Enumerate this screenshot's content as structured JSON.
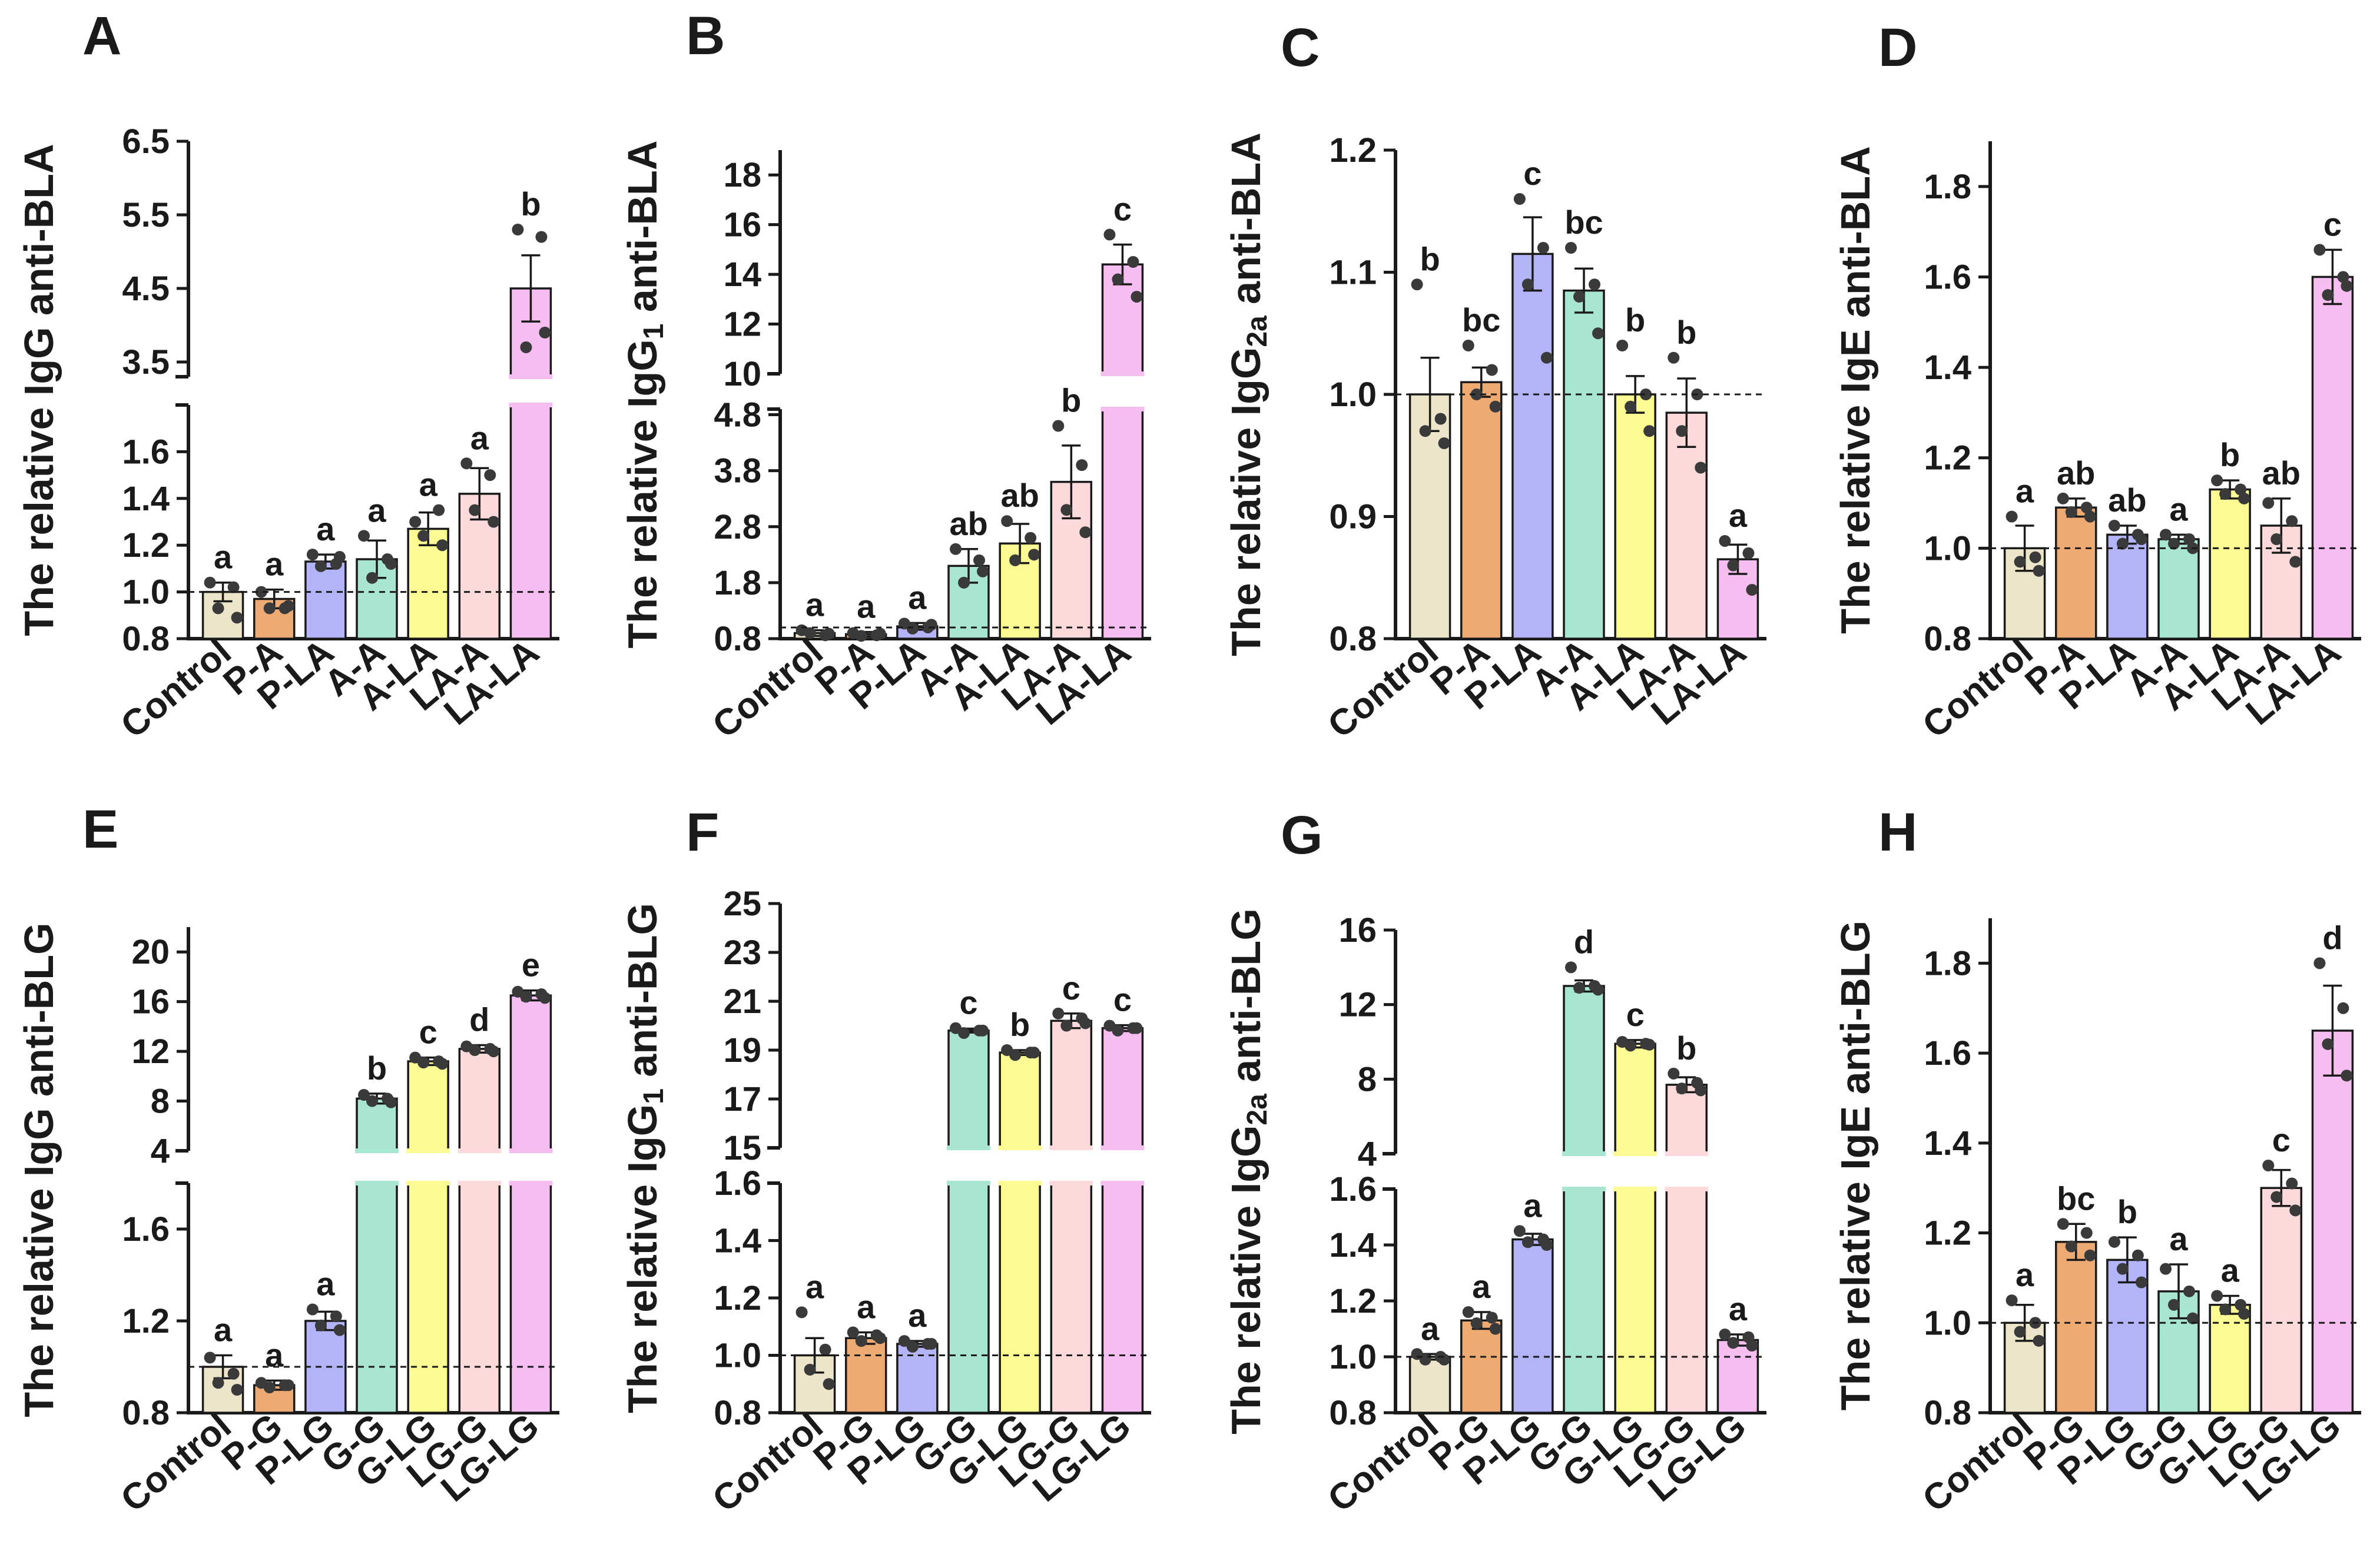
{
  "colors": {
    "Control": "#ece5c9",
    "P": "#eeaa73",
    "P-L": "#b3b3f7",
    "Treat": "#a9e6d1",
    "Treat-L": "#fbfa93",
    "L-Treat": "#fcd9da",
    "L-L": "#f6bdf1"
  },
  "chart_data": [
    {
      "panel": "A",
      "type": "bar",
      "ylabel": "The relative IgG anti-BLA",
      "categories": [
        "Control",
        "P-A",
        "P-LA",
        "A-A",
        "A-LA",
        "LA-A",
        "LA-LA"
      ],
      "values": [
        1.0,
        0.97,
        1.13,
        1.14,
        1.27,
        1.42,
        4.5
      ],
      "errors": [
        0.04,
        0.04,
        0.03,
        0.08,
        0.07,
        0.11,
        0.45
      ],
      "sig": [
        "a",
        "a",
        "a",
        "a",
        "a",
        "a",
        "b"
      ],
      "points": [
        [
          1.04,
          1.02,
          0.93,
          0.89
        ],
        [
          1.0,
          0.93,
          0.93,
          0.94
        ],
        [
          1.16,
          1.12,
          1.11,
          1.15
        ],
        [
          1.24,
          1.14,
          1.06,
          1.12
        ],
        [
          1.3,
          1.35,
          1.24,
          1.2
        ],
        [
          1.55,
          1.5,
          1.35,
          1.3
        ],
        [
          5.3,
          5.2,
          3.7,
          3.9
        ]
      ],
      "reference_line": 1.0,
      "axis_break": true,
      "lower_range": [
        0.8,
        1.8
      ],
      "lower_ticks": [
        "0.8",
        "1.0",
        "1.2",
        "1.4",
        "1.6"
      ],
      "upper_range": [
        3.3,
        6.5
      ],
      "upper_ticks": [
        "3.5",
        "4.5",
        "5.5",
        "6.5"
      ]
    },
    {
      "panel": "B",
      "type": "bar",
      "ylabel_main": "The relative IgG",
      "ylabel_sub": "1",
      "ylabel_tail": " anti-BLA",
      "categories": [
        "Control",
        "P-A",
        "P-LA",
        "A-A",
        "A-LA",
        "LA-A",
        "LA-LA"
      ],
      "values": [
        0.9,
        0.88,
        1.02,
        2.1,
        2.5,
        3.6,
        14.4
      ],
      "errors": [
        0.05,
        0.04,
        0.06,
        0.3,
        0.35,
        0.65,
        0.8
      ],
      "sig": [
        "a",
        "a",
        "a",
        "ab",
        "ab",
        "b",
        "c"
      ],
      "points": [
        [
          0.95,
          0.86,
          0.9,
          0.89
        ],
        [
          0.9,
          0.86,
          0.85,
          0.89
        ],
        [
          1.07,
          1.0,
          0.98,
          1.05
        ],
        [
          2.4,
          2.2,
          1.8,
          2.0
        ],
        [
          2.9,
          2.6,
          2.2,
          2.3
        ],
        [
          4.6,
          3.9,
          3.1,
          2.7
        ],
        [
          15.6,
          14.5,
          13.8,
          13.1
        ]
      ],
      "reference_line": 1.0,
      "axis_break": true,
      "lower_range": [
        0.8,
        4.9
      ],
      "lower_ticks": [
        "0.8",
        "1.8",
        "2.8",
        "3.8",
        "4.8"
      ],
      "upper_range": [
        10,
        19
      ],
      "upper_ticks": [
        "10",
        "12",
        "14",
        "16",
        "18"
      ]
    },
    {
      "panel": "C",
      "type": "bar",
      "ylabel_main": "The relative IgG",
      "ylabel_sub": "2a",
      "ylabel_tail": " anti-BLA",
      "categories": [
        "Control",
        "P-A",
        "P-LA",
        "A-A",
        "A-LA",
        "LA-A",
        "LA-LA"
      ],
      "values": [
        1.0,
        1.01,
        1.115,
        1.085,
        1.0,
        0.985,
        0.865
      ],
      "errors": [
        0.03,
        0.012,
        0.03,
        0.018,
        0.015,
        0.028,
        0.012
      ],
      "sig": [
        "b",
        "bc",
        "c",
        "bc",
        "b",
        "b",
        "a"
      ],
      "points": [
        [
          1.09,
          0.98,
          0.97,
          0.96
        ],
        [
          1.04,
          1.02,
          1.0,
          0.99
        ],
        [
          1.16,
          1.12,
          1.09,
          1.03
        ],
        [
          1.12,
          1.09,
          1.08,
          1.05
        ],
        [
          1.04,
          1.0,
          0.99,
          0.97
        ],
        [
          1.03,
          1.0,
          0.97,
          0.94
        ],
        [
          0.88,
          0.87,
          0.86,
          0.84
        ]
      ],
      "reference_line": 1.0,
      "axis_break": false,
      "range": [
        0.8,
        1.2
      ],
      "ticks": [
        "0.8",
        "0.9",
        "1.0",
        "1.1",
        "1.2"
      ]
    },
    {
      "panel": "D",
      "type": "bar",
      "ylabel": "The relative IgE anti-BLA",
      "categories": [
        "Control",
        "P-A",
        "P-LA",
        "A-A",
        "A-LA",
        "LA-A",
        "LA-LA"
      ],
      "values": [
        1.0,
        1.09,
        1.03,
        1.02,
        1.13,
        1.05,
        1.6
      ],
      "errors": [
        0.05,
        0.02,
        0.02,
        0.01,
        0.02,
        0.06,
        0.06
      ],
      "sig": [
        "a",
        "ab",
        "ab",
        "a",
        "b",
        "ab",
        "c"
      ],
      "points": [
        [
          1.07,
          0.98,
          0.97,
          0.95
        ],
        [
          1.11,
          1.09,
          1.08,
          1.07
        ],
        [
          1.05,
          1.03,
          1.01,
          1.02
        ],
        [
          1.03,
          1.02,
          1.01,
          1.0
        ],
        [
          1.15,
          1.13,
          1.12,
          1.11
        ],
        [
          1.1,
          1.06,
          1.02,
          0.97
        ],
        [
          1.66,
          1.6,
          1.56,
          1.58
        ]
      ],
      "reference_line": 1.0,
      "axis_break": false,
      "range": [
        0.8,
        1.9
      ],
      "ticks": [
        "0.8",
        "1.0",
        "1.2",
        "1.4",
        "1.6",
        "1.8"
      ]
    },
    {
      "panel": "E",
      "type": "bar",
      "ylabel": "The relative IgG anti-BLG",
      "categories": [
        "Control",
        "P-G",
        "P-LG",
        "G-G",
        "G-LG",
        "LG-G",
        "LG-LG"
      ],
      "values": [
        1.0,
        0.92,
        1.2,
        8.2,
        11.2,
        12.2,
        16.5
      ],
      "errors": [
        0.05,
        0.02,
        0.04,
        0.4,
        0.3,
        0.3,
        0.4
      ],
      "sig": [
        "a",
        "a",
        "a",
        "b",
        "c",
        "d",
        "e"
      ],
      "points": [
        [
          1.04,
          0.97,
          0.93,
          0.9
        ],
        [
          0.93,
          0.92,
          0.91,
          0.92
        ],
        [
          1.25,
          1.22,
          1.18,
          1.16
        ],
        [
          8.5,
          8.2,
          8.0,
          7.9
        ],
        [
          11.5,
          11.2,
          11.1,
          11.0
        ],
        [
          12.4,
          12.2,
          12.1,
          12.0
        ],
        [
          16.8,
          16.6,
          16.4,
          16.3
        ]
      ],
      "reference_line": 1.0,
      "axis_break": true,
      "lower_range": [
        0.8,
        1.8
      ],
      "lower_ticks": [
        "0.8",
        "1.2",
        "1.6"
      ],
      "upper_range": [
        4,
        22
      ],
      "upper_ticks": [
        "4",
        "8",
        "12",
        "16",
        "20"
      ]
    },
    {
      "panel": "F",
      "type": "bar",
      "ylabel_main": "The relative IgG",
      "ylabel_sub": "1",
      "ylabel_tail": " anti-BLG",
      "categories": [
        "Control",
        "P-G",
        "P-LG",
        "G-G",
        "G-LG",
        "LG-G",
        "LG-LG"
      ],
      "values": [
        1.0,
        1.06,
        1.04,
        19.8,
        18.9,
        20.2,
        19.9
      ],
      "errors": [
        0.06,
        0.02,
        0.01,
        0.08,
        0.1,
        0.3,
        0.12
      ],
      "sig": [
        "a",
        "a",
        "a",
        "c",
        "b",
        "c",
        "c"
      ],
      "points": [
        [
          1.15,
          1.02,
          0.95,
          0.9
        ],
        [
          1.08,
          1.07,
          1.05,
          1.06
        ],
        [
          1.05,
          1.04,
          1.03,
          1.04
        ],
        [
          19.9,
          19.8,
          19.7,
          19.8
        ],
        [
          19.0,
          18.9,
          18.8,
          18.9
        ],
        [
          20.5,
          20.3,
          20.0,
          20.1
        ],
        [
          20.0,
          19.9,
          19.8,
          19.9
        ]
      ],
      "reference_line": 1.0,
      "axis_break": true,
      "lower_range": [
        0.8,
        1.6
      ],
      "lower_ticks": [
        "0.8",
        "1.0",
        "1.2",
        "1.4",
        "1.6"
      ],
      "upper_range": [
        15,
        25
      ],
      "upper_ticks": [
        "15",
        "17",
        "19",
        "21",
        "23",
        "25"
      ]
    },
    {
      "panel": "G",
      "type": "bar",
      "ylabel_main": "The relative IgG",
      "ylabel_sub": "2a",
      "ylabel_tail": " anti-BLG",
      "categories": [
        "Control",
        "P-G",
        "P-LG",
        "G-G",
        "G-LG",
        "LG-G",
        "LG-LG"
      ],
      "values": [
        1.0,
        1.13,
        1.42,
        13.0,
        9.9,
        7.7,
        1.06
      ],
      "errors": [
        0.01,
        0.03,
        0.02,
        0.3,
        0.2,
        0.4,
        0.02
      ],
      "sig": [
        "a",
        "a",
        "a",
        "d",
        "c",
        "b",
        "a"
      ],
      "points": [
        [
          1.01,
          1.0,
          0.99,
          0.99
        ],
        [
          1.16,
          1.14,
          1.12,
          1.1
        ],
        [
          1.45,
          1.42,
          1.41,
          1.4
        ],
        [
          14.0,
          13.0,
          12.9,
          12.8
        ],
        [
          10.0,
          9.9,
          9.8,
          9.85
        ],
        [
          8.3,
          7.8,
          7.5,
          7.4
        ],
        [
          1.08,
          1.07,
          1.05,
          1.04
        ]
      ],
      "reference_line": 1.0,
      "axis_break": true,
      "lower_range": [
        0.8,
        1.6
      ],
      "lower_ticks": [
        "0.8",
        "1.0",
        "1.2",
        "1.4",
        "1.6"
      ],
      "upper_range": [
        4,
        16
      ],
      "upper_ticks": [
        "4",
        "8",
        "12",
        "16"
      ]
    },
    {
      "panel": "H",
      "type": "bar",
      "ylabel": "The relative IgE anti-BLG",
      "categories": [
        "Control",
        "P-G",
        "P-LG",
        "G-G",
        "G-LG",
        "LG-G",
        "LG-LG"
      ],
      "values": [
        1.0,
        1.18,
        1.14,
        1.07,
        1.04,
        1.3,
        1.65
      ],
      "errors": [
        0.04,
        0.04,
        0.05,
        0.06,
        0.02,
        0.04,
        0.1
      ],
      "sig": [
        "a",
        "bc",
        "b",
        "a",
        "a",
        "c",
        "d"
      ],
      "points": [
        [
          1.05,
          1.0,
          0.98,
          0.96
        ],
        [
          1.22,
          1.2,
          1.17,
          1.15
        ],
        [
          1.18,
          1.15,
          1.12,
          1.09
        ],
        [
          1.12,
          1.07,
          1.04,
          1.01
        ],
        [
          1.06,
          1.04,
          1.03,
          1.02
        ],
        [
          1.35,
          1.31,
          1.28,
          1.25
        ],
        [
          1.8,
          1.7,
          1.62,
          1.55
        ]
      ],
      "reference_line": 1.0,
      "axis_break": false,
      "range": [
        0.8,
        1.9
      ],
      "ticks": [
        "0.8",
        "1.0",
        "1.2",
        "1.4",
        "1.6",
        "1.8"
      ]
    }
  ]
}
